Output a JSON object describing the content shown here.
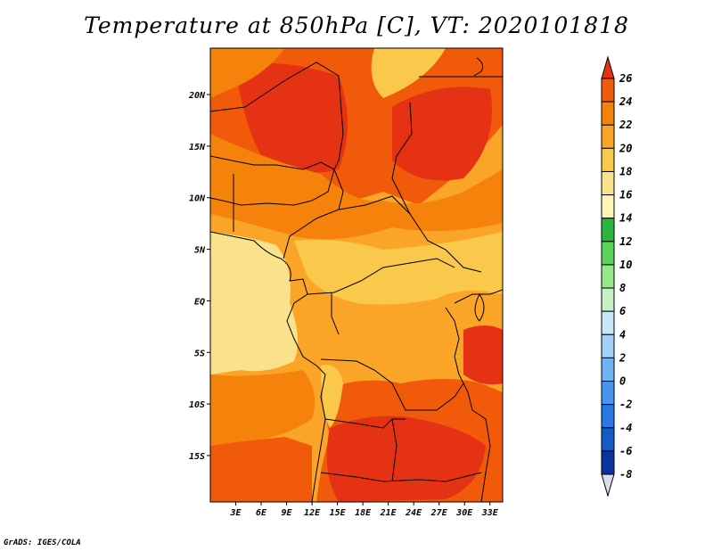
{
  "title": "Temperature at 850hPa [C], VT: 2020101818",
  "credit": "GrADS: IGES/COLA",
  "map": {
    "lon_range": [
      0,
      34.5
    ],
    "lat_range": [
      -19.5,
      24.5
    ],
    "x_ticks": [
      "3E",
      "6E",
      "9E",
      "12E",
      "15E",
      "18E",
      "21E",
      "24E",
      "27E",
      "30E",
      "33E"
    ],
    "y_ticks": [
      "20N",
      "15N",
      "10N",
      "5N",
      "EQ",
      "5S",
      "10S",
      "15S"
    ]
  },
  "colorbar": {
    "labels": [
      "26",
      "24",
      "22",
      "20",
      "18",
      "16",
      "14",
      "12",
      "10",
      "8",
      "6",
      "4",
      "2",
      "0",
      "-2",
      "-4",
      "-6",
      "-8"
    ],
    "colors": [
      "#e63214",
      "#f05a0a",
      "#f5820a",
      "#faa528",
      "#fac84b",
      "#fae18c",
      "#fff5b4",
      "#2db43c",
      "#5ad25a",
      "#96e68c",
      "#c8f0c8",
      "#c8e6fa",
      "#a0d2fa",
      "#6eb4f5",
      "#4696f0",
      "#2878e6",
      "#145ac8",
      "#0a32a0",
      "#0a0a78",
      "#dcdcf0"
    ]
  }
}
